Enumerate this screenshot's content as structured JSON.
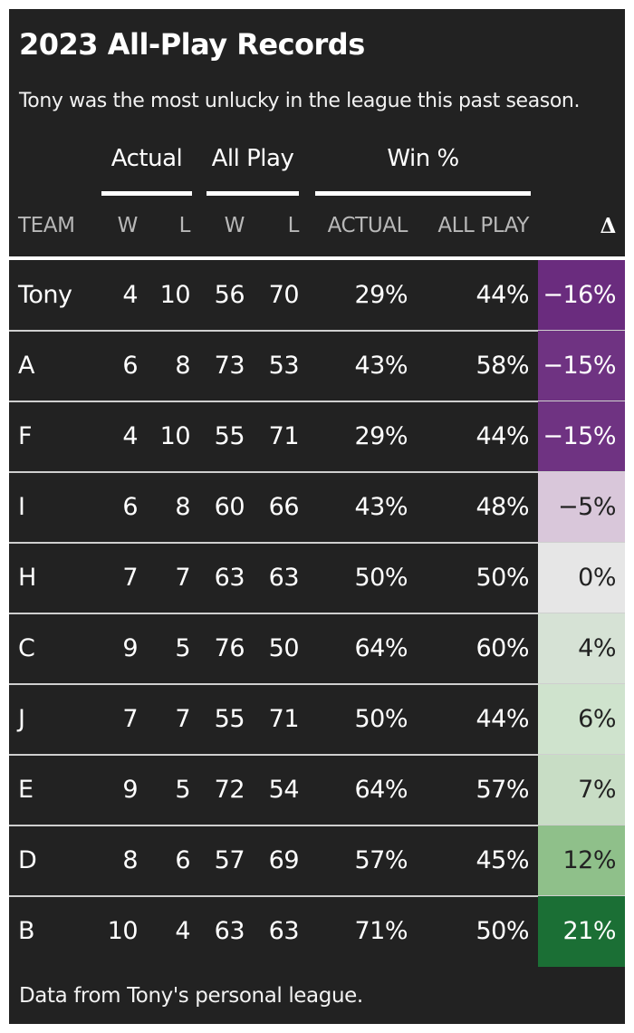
{
  "title": "2023 All-Play Records",
  "subtitle": "Tony was the most unlucky in the league this past season.",
  "group_headers": {
    "actual": "Actual",
    "all_play": "All Play",
    "win_pct": "Win %"
  },
  "columns": {
    "team": "TEAM",
    "actual_w": "W",
    "actual_l": "L",
    "allplay_w": "W",
    "allplay_l": "L",
    "win_actual": "ACTUAL",
    "win_allplay": "ALL PLAY",
    "delta": "Δ"
  },
  "rows": [
    {
      "team": "Tony",
      "aw": "4",
      "al": "10",
      "pw": "56",
      "pl": "70",
      "act": "29%",
      "ap": "44%",
      "delta": "−16%",
      "delta_bg": "#6a2c7e",
      "delta_fg": "#ffffff"
    },
    {
      "team": "A",
      "aw": "6",
      "al": "8",
      "pw": "73",
      "pl": "53",
      "act": "43%",
      "ap": "58%",
      "delta": "−15%",
      "delta_bg": "#6f3382",
      "delta_fg": "#ffffff"
    },
    {
      "team": "F",
      "aw": "4",
      "al": "10",
      "pw": "55",
      "pl": "71",
      "act": "29%",
      "ap": "44%",
      "delta": "−15%",
      "delta_bg": "#6f3382",
      "delta_fg": "#ffffff"
    },
    {
      "team": "I",
      "aw": "6",
      "al": "8",
      "pw": "60",
      "pl": "66",
      "act": "43%",
      "ap": "48%",
      "delta": "−5%",
      "delta_bg": "#d9c7da",
      "delta_fg": "#222222"
    },
    {
      "team": "H",
      "aw": "7",
      "al": "7",
      "pw": "63",
      "pl": "63",
      "act": "50%",
      "ap": "50%",
      "delta": "0%",
      "delta_bg": "#e6e6e6",
      "delta_fg": "#222222"
    },
    {
      "team": "C",
      "aw": "9",
      "al": "5",
      "pw": "76",
      "pl": "50",
      "act": "64%",
      "ap": "60%",
      "delta": "4%",
      "delta_bg": "#d6e2d5",
      "delta_fg": "#222222"
    },
    {
      "team": "J",
      "aw": "7",
      "al": "7",
      "pw": "55",
      "pl": "71",
      "act": "50%",
      "ap": "44%",
      "delta": "6%",
      "delta_bg": "#cfe3cd",
      "delta_fg": "#222222"
    },
    {
      "team": "E",
      "aw": "9",
      "al": "5",
      "pw": "72",
      "pl": "54",
      "act": "64%",
      "ap": "57%",
      "delta": "7%",
      "delta_bg": "#c8ddc5",
      "delta_fg": "#222222"
    },
    {
      "team": "D",
      "aw": "8",
      "al": "6",
      "pw": "57",
      "pl": "69",
      "act": "57%",
      "ap": "45%",
      "delta": "12%",
      "delta_bg": "#8fc08a",
      "delta_fg": "#222222"
    },
    {
      "team": "B",
      "aw": "10",
      "al": "4",
      "pw": "63",
      "pl": "63",
      "act": "71%",
      "ap": "50%",
      "delta": "21%",
      "delta_bg": "#1b6f35",
      "delta_fg": "#ffffff"
    }
  ],
  "footnote": "Data from Tony's personal league."
}
